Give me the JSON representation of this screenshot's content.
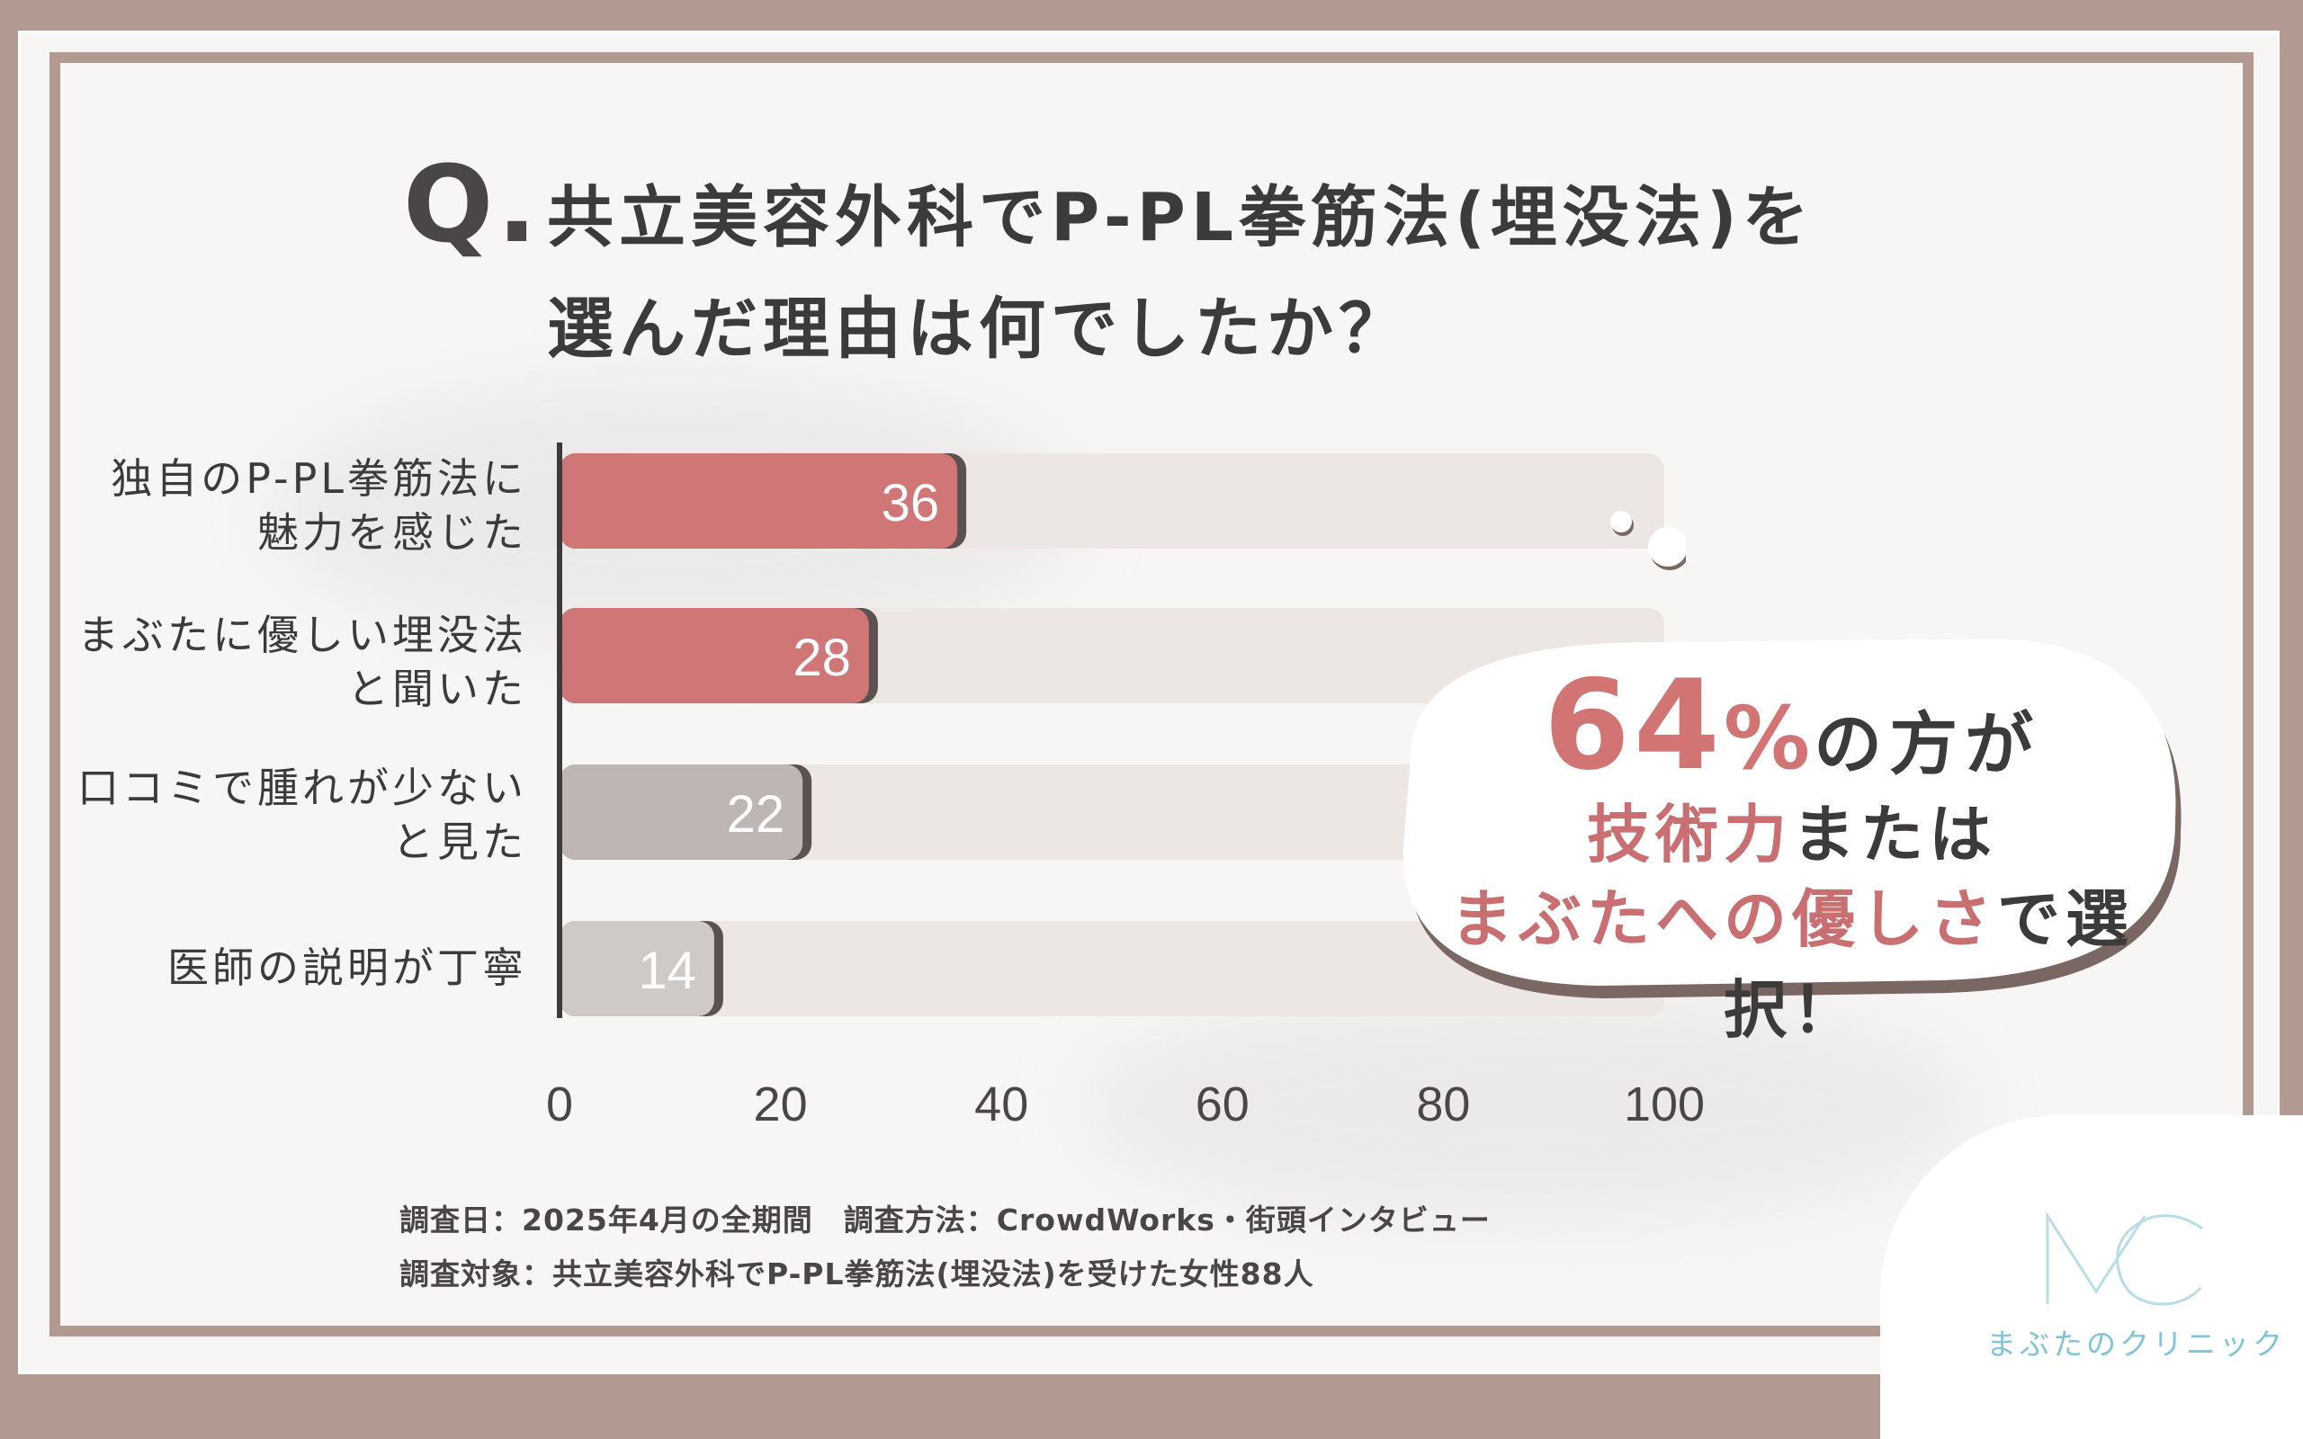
{
  "title": {
    "q_mark": "Q.",
    "line1": "共立美容外科でP-PL拳筋法(埋没法)を",
    "line2": "選んだ理由は何でしたか？"
  },
  "chart_data": {
    "type": "bar",
    "orientation": "horizontal",
    "categories": [
      "独自のP-PL拳筋法に\n魅力を感じた",
      "まぶたに優しい埋没法\nと聞いた",
      "口コミで腫れが少ない\nと見た",
      "医師の説明が丁寧"
    ],
    "values": [
      36,
      28,
      22,
      14
    ],
    "xlim": [
      0,
      100
    ],
    "xticks": [
      "0",
      "20",
      "40",
      "60",
      "80",
      "100"
    ],
    "bar_colors": [
      "#d07676",
      "#d07676",
      "#bdb6b4",
      "#cfc9c7"
    ],
    "track_color": "#ece7e5",
    "axis_color": "#3d3a3a"
  },
  "callout": {
    "percent": "64",
    "percent_sign": "%",
    "suffix": "の方が",
    "line2_pink": "技術力",
    "line2_dark": "または",
    "line3_pink": "まぶたへの優しさ",
    "line3_dark": "で選択！"
  },
  "footer": {
    "line1": "調査日：2025年4月の全期間　調査方法：CrowdWorks・街頭インタビュー",
    "line2": "調査対象：共立美容外科でP-PL拳筋法(埋没法)を受けた女性88人"
  },
  "logo": {
    "brand_text": "まぶたのクリニック",
    "mark": "MC",
    "color": "#7fc4d8"
  }
}
